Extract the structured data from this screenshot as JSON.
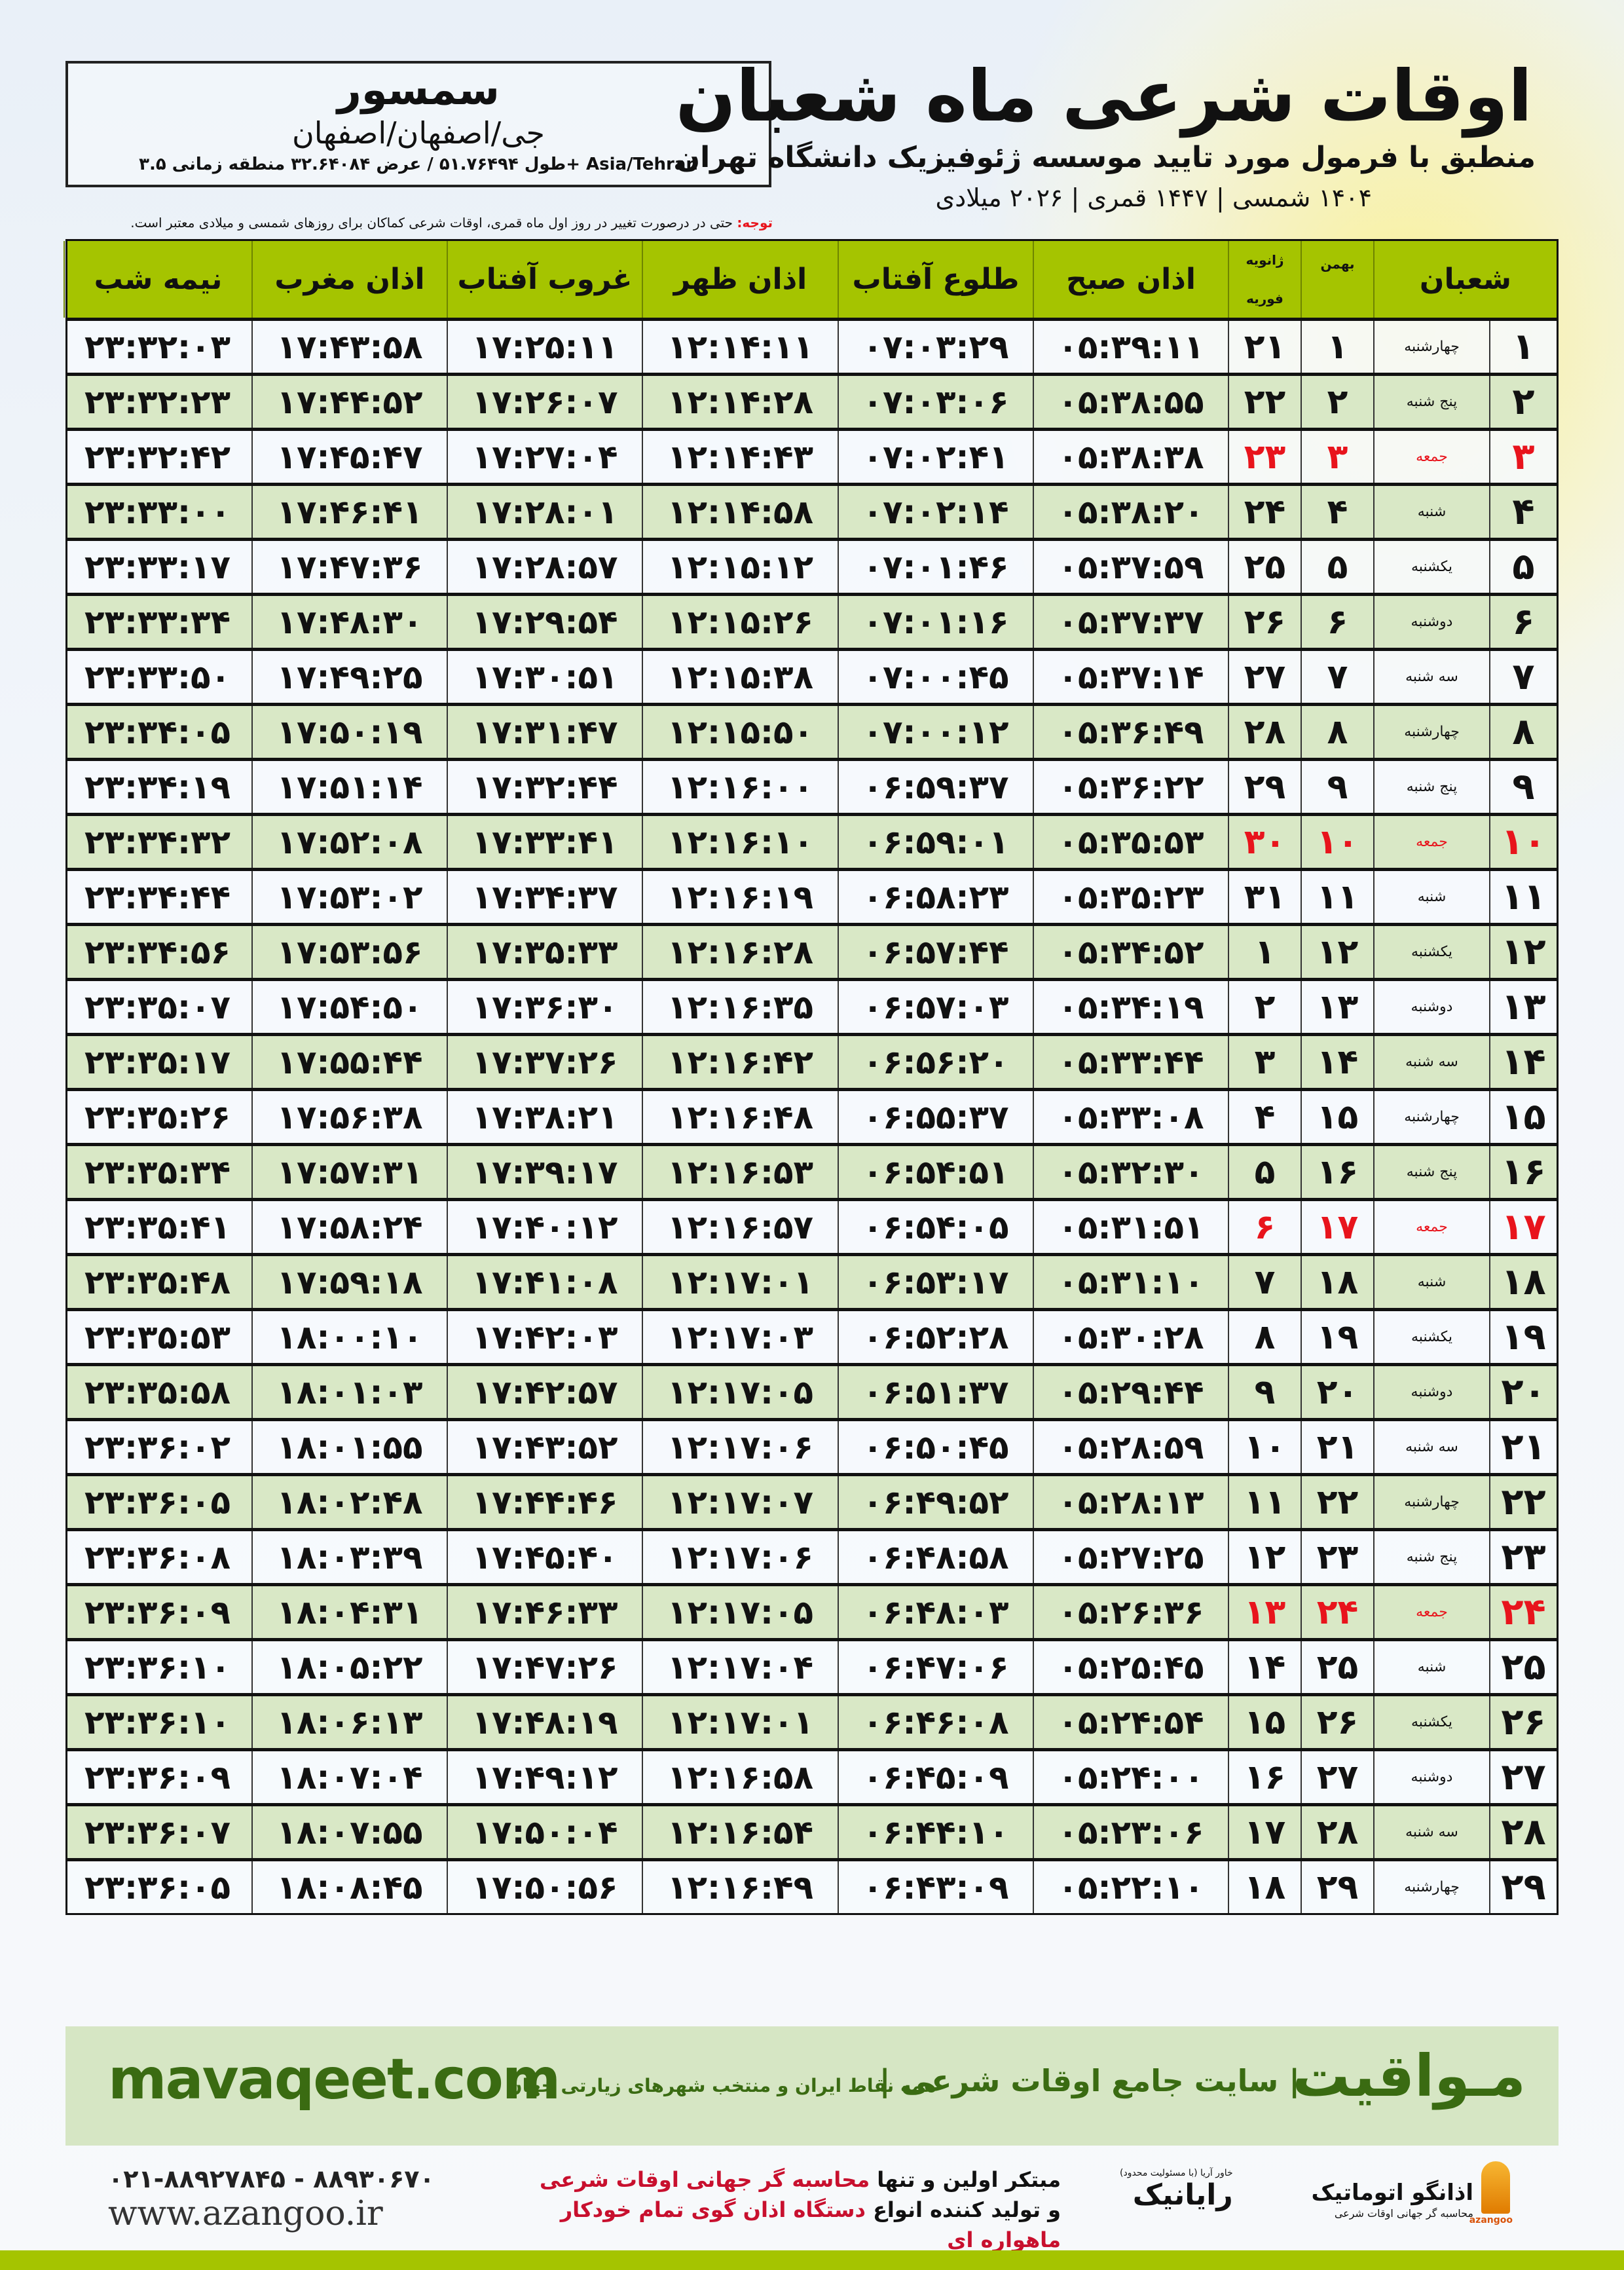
{
  "header": {
    "title": "اوقات شرعی ماه شعبان",
    "subtitle": "منطبق با فرمول مورد تایید موسسه ژئوفیزیک دانشگاه تهران",
    "dates": "۱۴۰۴ شمسی | ۱۴۴۷ قمری | ۲۰۲۶ میلادی",
    "note_label": "توجه:",
    "note_text": " حتی در درصورت تغییر در روز اول ماه قمری، اوقات شرعی کماکان برای روزهای شمسی و میلادی معتبر است."
  },
  "location": {
    "city": "سمسور",
    "region": "جی/اصفهان/اصفهان",
    "coords": "طول ۵۱.۷۶۴۹۴ / عرض ۳۲.۶۴۰۸۴ منطقه زمانی ۳.۵+ Asia/Tehran"
  },
  "table": {
    "columns": {
      "month": "شعبان",
      "bahman": "بهمن",
      "gregorian_top": "ژانویه",
      "gregorian_bottom": "فوریه",
      "fajr": "اذان صبح",
      "sunrise": "طلوع آفتاب",
      "dhuhr": "اذان ظهر",
      "sunset": "غروب آفتاب",
      "maghrib": "اذان مغرب",
      "midnight": "نیمه شب"
    },
    "holiday_color": "#e8141c",
    "header_color": "#a5c400",
    "rows": [
      [
        "۱",
        "چهارشنبه",
        "۱",
        "۲۱",
        "۰۵:۳۹:۱۱",
        "۰۷:۰۳:۲۹",
        "۱۲:۱۴:۱۱",
        "۱۷:۲۵:۱۱",
        "۱۷:۴۳:۵۸",
        "۲۳:۳۲:۰۳",
        false
      ],
      [
        "۲",
        "پنج شنبه",
        "۲",
        "۲۲",
        "۰۵:۳۸:۵۵",
        "۰۷:۰۳:۰۶",
        "۱۲:۱۴:۲۸",
        "۱۷:۲۶:۰۷",
        "۱۷:۴۴:۵۲",
        "۲۳:۳۲:۲۳",
        false
      ],
      [
        "۳",
        "جمعه",
        "۳",
        "۲۳",
        "۰۵:۳۸:۳۸",
        "۰۷:۰۲:۴۱",
        "۱۲:۱۴:۴۳",
        "۱۷:۲۷:۰۴",
        "۱۷:۴۵:۴۷",
        "۲۳:۳۲:۴۲",
        true
      ],
      [
        "۴",
        "شنبه",
        "۴",
        "۲۴",
        "۰۵:۳۸:۲۰",
        "۰۷:۰۲:۱۴",
        "۱۲:۱۴:۵۸",
        "۱۷:۲۸:۰۱",
        "۱۷:۴۶:۴۱",
        "۲۳:۳۳:۰۰",
        false
      ],
      [
        "۵",
        "یکشنبه",
        "۵",
        "۲۵",
        "۰۵:۳۷:۵۹",
        "۰۷:۰۱:۴۶",
        "۱۲:۱۵:۱۲",
        "۱۷:۲۸:۵۷",
        "۱۷:۴۷:۳۶",
        "۲۳:۳۳:۱۷",
        false
      ],
      [
        "۶",
        "دوشنبه",
        "۶",
        "۲۶",
        "۰۵:۳۷:۳۷",
        "۰۷:۰۱:۱۶",
        "۱۲:۱۵:۲۶",
        "۱۷:۲۹:۵۴",
        "۱۷:۴۸:۳۰",
        "۲۳:۳۳:۳۴",
        false
      ],
      [
        "۷",
        "سه شنبه",
        "۷",
        "۲۷",
        "۰۵:۳۷:۱۴",
        "۰۷:۰۰:۴۵",
        "۱۲:۱۵:۳۸",
        "۱۷:۳۰:۵۱",
        "۱۷:۴۹:۲۵",
        "۲۳:۳۳:۵۰",
        false
      ],
      [
        "۸",
        "چهارشنبه",
        "۸",
        "۲۸",
        "۰۵:۳۶:۴۹",
        "۰۷:۰۰:۱۲",
        "۱۲:۱۵:۵۰",
        "۱۷:۳۱:۴۷",
        "۱۷:۵۰:۱۹",
        "۲۳:۳۴:۰۵",
        false
      ],
      [
        "۹",
        "پنج شنبه",
        "۹",
        "۲۹",
        "۰۵:۳۶:۲۲",
        "۰۶:۵۹:۳۷",
        "۱۲:۱۶:۰۰",
        "۱۷:۳۲:۴۴",
        "۱۷:۵۱:۱۴",
        "۲۳:۳۴:۱۹",
        false
      ],
      [
        "۱۰",
        "جمعه",
        "۱۰",
        "۳۰",
        "۰۵:۳۵:۵۳",
        "۰۶:۵۹:۰۱",
        "۱۲:۱۶:۱۰",
        "۱۷:۳۳:۴۱",
        "۱۷:۵۲:۰۸",
        "۲۳:۳۴:۳۲",
        true
      ],
      [
        "۱۱",
        "شنبه",
        "۱۱",
        "۳۱",
        "۰۵:۳۵:۲۳",
        "۰۶:۵۸:۲۳",
        "۱۲:۱۶:۱۹",
        "۱۷:۳۴:۳۷",
        "۱۷:۵۳:۰۲",
        "۲۳:۳۴:۴۴",
        false
      ],
      [
        "۱۲",
        "یکشنبه",
        "۱۲",
        "۱",
        "۰۵:۳۴:۵۲",
        "۰۶:۵۷:۴۴",
        "۱۲:۱۶:۲۸",
        "۱۷:۳۵:۳۳",
        "۱۷:۵۳:۵۶",
        "۲۳:۳۴:۵۶",
        false
      ],
      [
        "۱۳",
        "دوشنبه",
        "۱۳",
        "۲",
        "۰۵:۳۴:۱۹",
        "۰۶:۵۷:۰۳",
        "۱۲:۱۶:۳۵",
        "۱۷:۳۶:۳۰",
        "۱۷:۵۴:۵۰",
        "۲۳:۳۵:۰۷",
        false
      ],
      [
        "۱۴",
        "سه شنبه",
        "۱۴",
        "۳",
        "۰۵:۳۳:۴۴",
        "۰۶:۵۶:۲۰",
        "۱۲:۱۶:۴۲",
        "۱۷:۳۷:۲۶",
        "۱۷:۵۵:۴۴",
        "۲۳:۳۵:۱۷",
        false
      ],
      [
        "۱۵",
        "چهارشنبه",
        "۱۵",
        "۴",
        "۰۵:۳۳:۰۸",
        "۰۶:۵۵:۳۷",
        "۱۲:۱۶:۴۸",
        "۱۷:۳۸:۲۱",
        "۱۷:۵۶:۳۸",
        "۲۳:۳۵:۲۶",
        false
      ],
      [
        "۱۶",
        "پنج شنبه",
        "۱۶",
        "۵",
        "۰۵:۳۲:۳۰",
        "۰۶:۵۴:۵۱",
        "۱۲:۱۶:۵۳",
        "۱۷:۳۹:۱۷",
        "۱۷:۵۷:۳۱",
        "۲۳:۳۵:۳۴",
        false
      ],
      [
        "۱۷",
        "جمعه",
        "۱۷",
        "۶",
        "۰۵:۳۱:۵۱",
        "۰۶:۵۴:۰۵",
        "۱۲:۱۶:۵۷",
        "۱۷:۴۰:۱۲",
        "۱۷:۵۸:۲۴",
        "۲۳:۳۵:۴۱",
        true
      ],
      [
        "۱۸",
        "شنبه",
        "۱۸",
        "۷",
        "۰۵:۳۱:۱۰",
        "۰۶:۵۳:۱۷",
        "۱۲:۱۷:۰۱",
        "۱۷:۴۱:۰۸",
        "۱۷:۵۹:۱۸",
        "۲۳:۳۵:۴۸",
        false
      ],
      [
        "۱۹",
        "یکشنبه",
        "۱۹",
        "۸",
        "۰۵:۳۰:۲۸",
        "۰۶:۵۲:۲۸",
        "۱۲:۱۷:۰۳",
        "۱۷:۴۲:۰۳",
        "۱۸:۰۰:۱۰",
        "۲۳:۳۵:۵۳",
        false
      ],
      [
        "۲۰",
        "دوشنبه",
        "۲۰",
        "۹",
        "۰۵:۲۹:۴۴",
        "۰۶:۵۱:۳۷",
        "۱۲:۱۷:۰۵",
        "۱۷:۴۲:۵۷",
        "۱۸:۰۱:۰۳",
        "۲۳:۳۵:۵۸",
        false
      ],
      [
        "۲۱",
        "سه شنبه",
        "۲۱",
        "۱۰",
        "۰۵:۲۸:۵۹",
        "۰۶:۵۰:۴۵",
        "۱۲:۱۷:۰۶",
        "۱۷:۴۳:۵۲",
        "۱۸:۰۱:۵۵",
        "۲۳:۳۶:۰۲",
        false
      ],
      [
        "۲۲",
        "چهارشنبه",
        "۲۲",
        "۱۱",
        "۰۵:۲۸:۱۳",
        "۰۶:۴۹:۵۲",
        "۱۲:۱۷:۰۷",
        "۱۷:۴۴:۴۶",
        "۱۸:۰۲:۴۸",
        "۲۳:۳۶:۰۵",
        false
      ],
      [
        "۲۳",
        "پنج شنبه",
        "۲۳",
        "۱۲",
        "۰۵:۲۷:۲۵",
        "۰۶:۴۸:۵۸",
        "۱۲:۱۷:۰۶",
        "۱۷:۴۵:۴۰",
        "۱۸:۰۳:۳۹",
        "۲۳:۳۶:۰۸",
        false
      ],
      [
        "۲۴",
        "جمعه",
        "۲۴",
        "۱۳",
        "۰۵:۲۶:۳۶",
        "۰۶:۴۸:۰۳",
        "۱۲:۱۷:۰۵",
        "۱۷:۴۶:۳۳",
        "۱۸:۰۴:۳۱",
        "۲۳:۳۶:۰۹",
        true
      ],
      [
        "۲۵",
        "شنبه",
        "۲۵",
        "۱۴",
        "۰۵:۲۵:۴۵",
        "۰۶:۴۷:۰۶",
        "۱۲:۱۷:۰۴",
        "۱۷:۴۷:۲۶",
        "۱۸:۰۵:۲۲",
        "۲۳:۳۶:۱۰",
        false
      ],
      [
        "۲۶",
        "یکشنبه",
        "۲۶",
        "۱۵",
        "۰۵:۲۴:۵۴",
        "۰۶:۴۶:۰۸",
        "۱۲:۱۷:۰۱",
        "۱۷:۴۸:۱۹",
        "۱۸:۰۶:۱۳",
        "۲۳:۳۶:۱۰",
        false
      ],
      [
        "۲۷",
        "دوشنبه",
        "۲۷",
        "۱۶",
        "۰۵:۲۴:۰۰",
        "۰۶:۴۵:۰۹",
        "۱۲:۱۶:۵۸",
        "۱۷:۴۹:۱۲",
        "۱۸:۰۷:۰۴",
        "۲۳:۳۶:۰۹",
        false
      ],
      [
        "۲۸",
        "سه شنبه",
        "۲۸",
        "۱۷",
        "۰۵:۲۳:۰۶",
        "۰۶:۴۴:۱۰",
        "۱۲:۱۶:۵۴",
        "۱۷:۵۰:۰۴",
        "۱۸:۰۷:۵۵",
        "۲۳:۳۶:۰۷",
        false
      ],
      [
        "۲۹",
        "چهارشنبه",
        "۲۹",
        "۱۸",
        "۰۵:۲۲:۱۰",
        "۰۶:۴۳:۰۹",
        "۱۲:۱۶:۴۹",
        "۱۷:۵۰:۵۶",
        "۱۸:۰۸:۴۵",
        "۲۳:۳۶:۰۵",
        false
      ]
    ]
  },
  "footer": {
    "site": "mavaqeet.com",
    "brand": "مـواقیت",
    "slogan": "| سایت جامع اوقات شرعی |",
    "sub_slogan": "همه نقاط ایران و منتخب شهرهای زیارتی جهان",
    "phone": "۰۲۱-۸۸۹۲۷۸۴۵ - ۸۸۹۳۰۶۷۰",
    "website": "www.azangoo.ir",
    "promo_1a": "مبتکر اولین و تنها ",
    "promo_1b": "محاسبه گر جهانی اوقات شرعی",
    "promo_2a": "و تولید کننده انواع ",
    "promo_2b": "دستگاه اذان گوی تمام خودکار ماهواره ای",
    "logo_rayanik": "رایانیک",
    "logo_rayanik_small": "خاور آریا (با مسئولیت محدود)",
    "logo_azangoo": "اذانگو اتوماتیک",
    "logo_azangoo_sub": "محاسبه گر جهانی اوقات شرعی",
    "logo_azangoo_en": "azangoo",
    "accent": "#a5c400",
    "brand_green": "#3a6b12"
  }
}
